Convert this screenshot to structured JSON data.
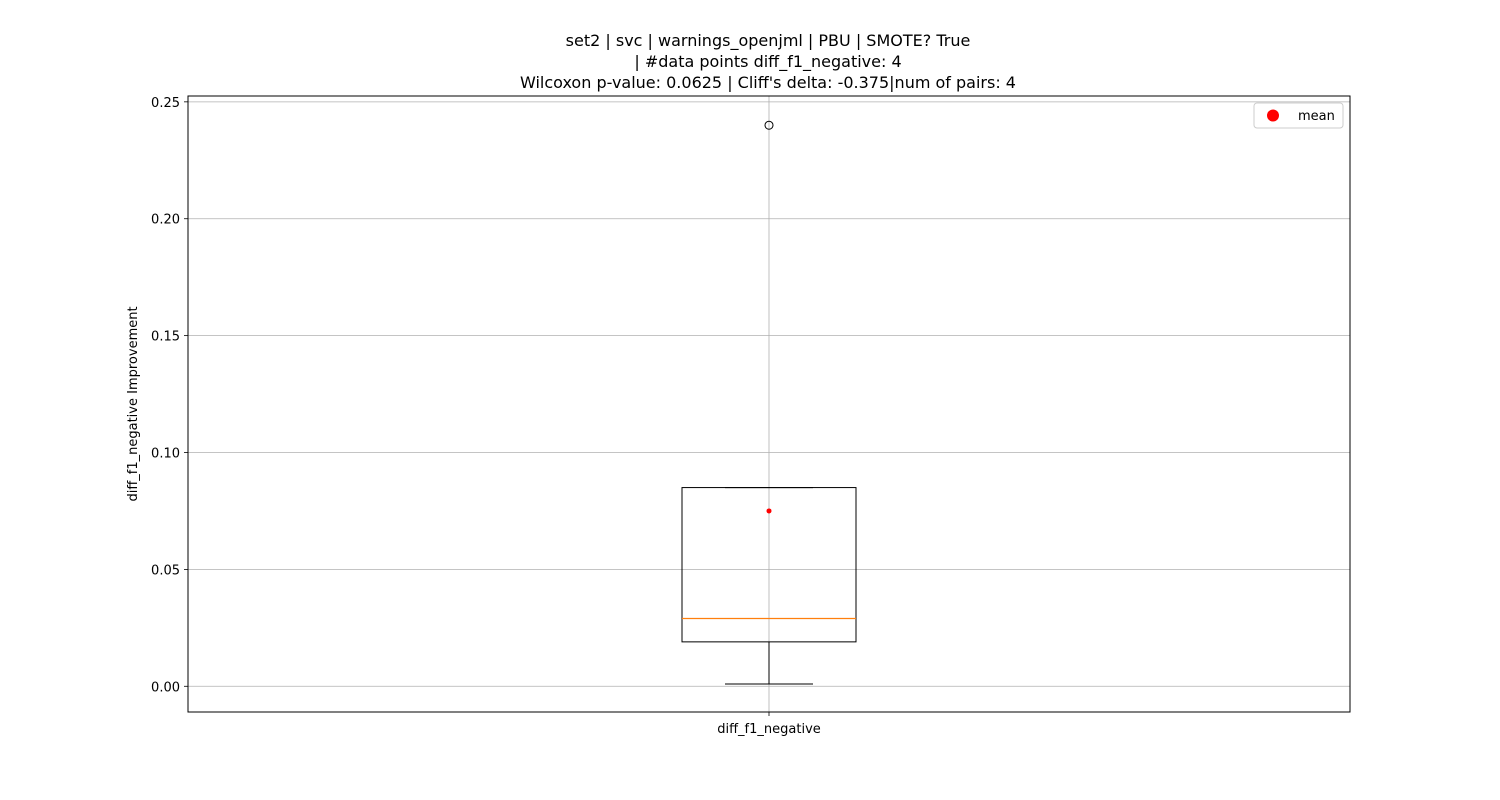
{
  "chart_data": {
    "type": "box",
    "title_lines": [
      "set2 | svc | warnings_openjml | PBU | SMOTE? True",
      "| #data points diff_f1_negative: 4",
      "Wilcoxon p-value: 0.0625 | Cliff's delta: -0.375|num of pairs: 4"
    ],
    "ylabel": "diff_f1_negative Improvement",
    "xlabel": "",
    "categories": [
      "diff_f1_negative"
    ],
    "ylim": [
      -0.011,
      0.2525
    ],
    "yticks": [
      0.0,
      0.05,
      0.1,
      0.15,
      0.2,
      0.25
    ],
    "ytick_labels": [
      "0.00",
      "0.05",
      "0.10",
      "0.15",
      "0.20",
      "0.25"
    ],
    "grid": true,
    "boxes": [
      {
        "name": "diff_f1_negative",
        "whisker_low": 0.001,
        "q1": 0.019,
        "median": 0.029,
        "q3": 0.085,
        "whisker_high": 0.085,
        "mean": 0.075,
        "outliers": [
          0.24
        ]
      }
    ],
    "legend": {
      "position": "top-right",
      "entries": [
        {
          "label": "mean",
          "color": "#ff0000",
          "marker": "circle"
        }
      ]
    },
    "colors": {
      "box": "#000000",
      "median": "#ff7f0e",
      "mean": "#ff0000",
      "grid": "#b0b0b0"
    }
  }
}
